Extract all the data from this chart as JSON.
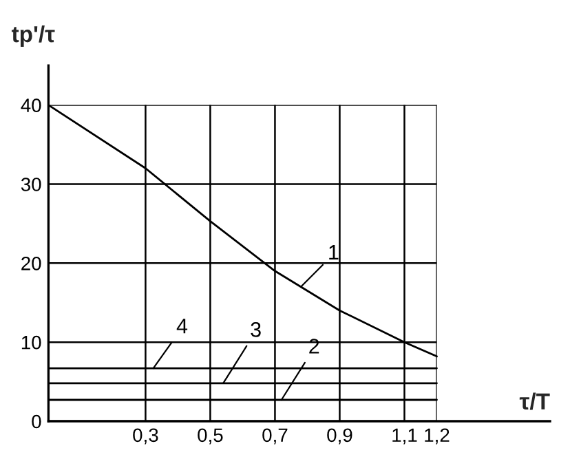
{
  "chart_data": {
    "type": "line",
    "xlabel": "τ/T",
    "ylabel": "tp'/τ",
    "xlim": [
      0,
      1.55
    ],
    "ylim": [
      0,
      45
    ],
    "xticks": [
      {
        "value": 0.3,
        "label": "0,3"
      },
      {
        "value": 0.5,
        "label": "0,5"
      },
      {
        "value": 0.7,
        "label": "0,7"
      },
      {
        "value": 0.9,
        "label": "0,9"
      },
      {
        "value": 1.1,
        "label": "1,1"
      },
      {
        "value": 1.2,
        "label": "1,2"
      }
    ],
    "yticks": [
      0,
      10,
      20,
      30,
      40
    ],
    "grid": true,
    "legend": false,
    "marker": "none",
    "line_style": "solid",
    "series": [
      {
        "name": "1",
        "color": "#000000",
        "x": [
          0,
          0.3,
          0.5,
          0.7,
          0.9,
          1.1,
          1.2
        ],
        "values": [
          40,
          32,
          25.3,
          19,
          14,
          10,
          8.2
        ]
      },
      {
        "name": "2",
        "color": "#000000",
        "x": [
          0,
          1.2
        ],
        "values": [
          2.7,
          2.7
        ]
      },
      {
        "name": "3",
        "color": "#000000",
        "x": [
          0,
          1.2
        ],
        "values": [
          4.8,
          4.8
        ]
      },
      {
        "name": "4",
        "color": "#000000",
        "x": [
          0,
          1.2
        ],
        "values": [
          6.7,
          6.7
        ]
      }
    ]
  }
}
